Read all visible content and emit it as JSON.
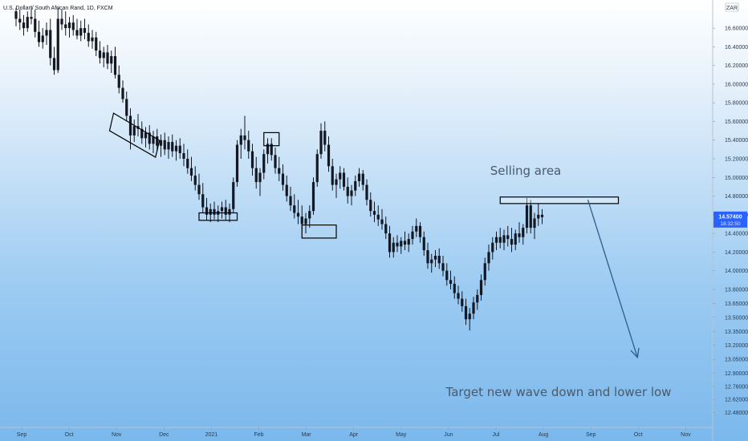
{
  "chart_data": {
    "type": "candlestick",
    "title": "U.S. Dollar / South African Rand, 1D, FXCM",
    "currency_badge": "ZAR",
    "ylim": [
      12.45,
      16.85
    ],
    "y_ticks": [
      "16.60000",
      "16.40000",
      "16.20000",
      "16.00000",
      "15.80000",
      "15.60000",
      "15.40000",
      "15.20000",
      "15.00000",
      "14.80000",
      "14.60000",
      "14.40000",
      "14.20000",
      "14.00000",
      "13.80000",
      "13.65000",
      "13.50000",
      "13.35000",
      "13.20000",
      "13.05000",
      "12.90000",
      "12.76000",
      "12.62000",
      "12.48000"
    ],
    "x_ticks": [
      "Sep",
      "Oct",
      "Nov",
      "Dec",
      "2021",
      "Feb",
      "Mar",
      "Apr",
      "May",
      "Jun",
      "Jul",
      "Aug",
      "Sep",
      "Oct",
      "Nov"
    ],
    "last_price": "14.57400",
    "countdown": "18:32:50",
    "series": [
      {
        "values": [
          [
            16.78,
            16.82,
            16.62,
            16.7
          ],
          [
            16.7,
            16.8,
            16.58,
            16.66
          ],
          [
            16.66,
            16.74,
            16.52,
            16.6
          ],
          [
            16.6,
            16.78,
            16.56,
            16.72
          ],
          [
            16.72,
            16.84,
            16.64,
            16.7
          ],
          [
            16.7,
            16.8,
            16.5,
            16.56
          ],
          [
            16.56,
            16.68,
            16.4,
            16.45
          ],
          [
            16.45,
            16.6,
            16.38,
            16.52
          ],
          [
            16.52,
            16.66,
            16.42,
            16.58
          ],
          [
            16.58,
            16.7,
            16.2,
            16.28
          ],
          [
            16.28,
            16.4,
            16.1,
            16.15
          ],
          [
            16.15,
            16.82,
            16.12,
            16.7
          ],
          [
            16.7,
            16.8,
            16.58,
            16.64
          ],
          [
            16.64,
            16.78,
            16.52,
            16.6
          ],
          [
            16.6,
            16.72,
            16.5,
            16.66
          ],
          [
            16.66,
            16.74,
            16.52,
            16.58
          ],
          [
            16.58,
            16.7,
            16.48,
            16.52
          ],
          [
            16.52,
            16.68,
            16.46,
            16.6
          ],
          [
            16.6,
            16.7,
            16.48,
            16.55
          ],
          [
            16.55,
            16.64,
            16.4,
            16.46
          ],
          [
            16.46,
            16.58,
            16.38,
            16.5
          ],
          [
            16.5,
            16.56,
            16.3,
            16.36
          ],
          [
            16.36,
            16.46,
            16.22,
            16.28
          ],
          [
            16.28,
            16.4,
            16.18,
            16.34
          ],
          [
            16.34,
            16.42,
            16.16,
            16.22
          ],
          [
            16.22,
            16.36,
            16.12,
            16.3
          ],
          [
            16.3,
            16.4,
            16.06,
            16.1
          ],
          [
            16.1,
            16.2,
            15.9,
            15.96
          ],
          [
            15.96,
            16.04,
            15.8,
            15.84
          ],
          [
            15.84,
            15.92,
            15.6,
            15.66
          ],
          [
            15.66,
            15.74,
            15.3,
            15.45
          ],
          [
            15.45,
            15.62,
            15.38,
            15.55
          ],
          [
            15.55,
            15.68,
            15.44,
            15.52
          ],
          [
            15.52,
            15.6,
            15.36,
            15.42
          ],
          [
            15.42,
            15.54,
            15.32,
            15.48
          ],
          [
            15.48,
            15.56,
            15.3,
            15.36
          ],
          [
            15.36,
            15.5,
            15.26,
            15.44
          ],
          [
            15.44,
            15.52,
            15.28,
            15.34
          ],
          [
            15.34,
            15.46,
            15.22,
            15.4
          ],
          [
            15.4,
            15.48,
            15.24,
            15.3
          ],
          [
            15.3,
            15.44,
            15.2,
            15.38
          ],
          [
            15.38,
            15.46,
            15.22,
            15.28
          ],
          [
            15.28,
            15.4,
            15.18,
            15.34
          ],
          [
            15.34,
            15.42,
            15.2,
            15.26
          ],
          [
            15.26,
            15.36,
            15.12,
            15.2
          ],
          [
            15.2,
            15.3,
            15.04,
            15.1
          ],
          [
            15.1,
            15.22,
            14.96,
            15.02
          ],
          [
            15.02,
            15.12,
            14.86,
            14.92
          ],
          [
            14.92,
            15.04,
            14.76,
            14.82
          ],
          [
            14.82,
            14.94,
            14.62,
            14.68
          ],
          [
            14.68,
            14.78,
            14.54,
            14.6
          ],
          [
            14.6,
            14.72,
            14.52,
            14.66
          ],
          [
            14.66,
            14.74,
            14.55,
            14.6
          ],
          [
            14.6,
            14.7,
            14.52,
            14.64
          ],
          [
            14.64,
            14.74,
            14.56,
            14.68
          ],
          [
            14.68,
            14.76,
            14.54,
            14.6
          ],
          [
            14.6,
            14.72,
            14.52,
            14.66
          ],
          [
            14.66,
            15.0,
            14.62,
            14.95
          ],
          [
            14.95,
            15.4,
            14.9,
            15.35
          ],
          [
            15.35,
            15.52,
            15.2,
            15.45
          ],
          [
            15.45,
            15.66,
            15.3,
            15.4
          ],
          [
            15.4,
            15.5,
            15.2,
            15.28
          ],
          [
            15.28,
            15.36,
            15.02,
            15.1
          ],
          [
            15.1,
            15.22,
            14.88,
            14.95
          ],
          [
            14.95,
            15.1,
            14.8,
            15.05
          ],
          [
            15.05,
            15.3,
            14.98,
            15.25
          ],
          [
            15.25,
            15.42,
            15.15,
            15.36
          ],
          [
            15.36,
            15.42,
            15.18,
            15.24
          ],
          [
            15.24,
            15.32,
            15.04,
            15.1
          ],
          [
            15.1,
            15.22,
            14.96,
            15.04
          ],
          [
            15.04,
            15.14,
            14.86,
            14.92
          ],
          [
            14.92,
            15.02,
            14.74,
            14.8
          ],
          [
            14.8,
            14.9,
            14.64,
            14.7
          ],
          [
            14.7,
            14.82,
            14.56,
            14.62
          ],
          [
            14.62,
            14.76,
            14.5,
            14.58
          ],
          [
            14.58,
            14.7,
            14.44,
            14.5
          ],
          [
            14.5,
            14.62,
            14.4,
            14.56
          ],
          [
            14.56,
            14.7,
            14.46,
            14.64
          ],
          [
            14.64,
            15.0,
            14.6,
            14.95
          ],
          [
            14.95,
            15.3,
            14.9,
            15.25
          ],
          [
            15.25,
            15.58,
            15.2,
            15.5
          ],
          [
            15.5,
            15.6,
            15.28,
            15.35
          ],
          [
            15.35,
            15.44,
            15.06,
            15.12
          ],
          [
            15.12,
            15.2,
            14.86,
            14.92
          ],
          [
            14.92,
            15.04,
            14.78,
            14.98
          ],
          [
            14.98,
            15.12,
            14.88,
            15.05
          ],
          [
            15.05,
            15.1,
            14.86,
            14.9
          ],
          [
            14.9,
            15.0,
            14.72,
            14.8
          ],
          [
            14.8,
            14.92,
            14.7,
            14.86
          ],
          [
            14.86,
            15.02,
            14.8,
            14.96
          ],
          [
            14.96,
            15.1,
            14.9,
            15.04
          ],
          [
            15.04,
            15.08,
            14.86,
            14.92
          ],
          [
            14.92,
            14.98,
            14.7,
            14.76
          ],
          [
            14.76,
            14.84,
            14.58,
            14.64
          ],
          [
            14.64,
            14.74,
            14.52,
            14.6
          ],
          [
            14.6,
            14.7,
            14.48,
            14.55
          ],
          [
            14.55,
            14.66,
            14.44,
            14.5
          ],
          [
            14.5,
            14.58,
            14.34,
            14.4
          ],
          [
            14.4,
            14.48,
            14.14,
            14.2
          ],
          [
            14.2,
            14.36,
            14.14,
            14.3
          ],
          [
            14.3,
            14.38,
            14.2,
            14.26
          ],
          [
            14.26,
            14.36,
            14.18,
            14.32
          ],
          [
            14.32,
            14.42,
            14.22,
            14.28
          ],
          [
            14.28,
            14.4,
            14.2,
            14.34
          ],
          [
            14.34,
            14.48,
            14.28,
            14.42
          ],
          [
            14.42,
            14.56,
            14.36,
            14.48
          ],
          [
            14.48,
            14.52,
            14.3,
            14.36
          ],
          [
            14.36,
            14.42,
            14.16,
            14.22
          ],
          [
            14.22,
            14.3,
            14.02,
            14.08
          ],
          [
            14.08,
            14.18,
            13.98,
            14.12
          ],
          [
            14.12,
            14.22,
            14.04,
            14.16
          ],
          [
            14.16,
            14.24,
            14.02,
            14.08
          ],
          [
            14.08,
            14.16,
            13.94,
            14.0
          ],
          [
            14.0,
            14.08,
            13.84,
            13.9
          ],
          [
            13.9,
            14.0,
            13.8,
            13.86
          ],
          [
            13.86,
            13.94,
            13.7,
            13.76
          ],
          [
            13.76,
            13.84,
            13.64,
            13.7
          ],
          [
            13.7,
            13.78,
            13.56,
            13.62
          ],
          [
            13.62,
            13.7,
            13.42,
            13.48
          ],
          [
            13.48,
            13.6,
            13.36,
            13.54
          ],
          [
            13.54,
            13.72,
            13.48,
            13.66
          ],
          [
            13.66,
            13.8,
            13.58,
            13.74
          ],
          [
            13.74,
            13.96,
            13.68,
            13.9
          ],
          [
            13.9,
            14.14,
            13.84,
            14.08
          ],
          [
            14.08,
            14.28,
            14.0,
            14.2
          ],
          [
            14.2,
            14.36,
            14.12,
            14.3
          ],
          [
            14.3,
            14.42,
            14.22,
            14.36
          ],
          [
            14.36,
            14.46,
            14.24,
            14.3
          ],
          [
            14.3,
            14.44,
            14.22,
            14.38
          ],
          [
            14.38,
            14.48,
            14.26,
            14.34
          ],
          [
            14.34,
            14.46,
            14.2,
            14.28
          ],
          [
            14.28,
            14.44,
            14.22,
            14.4
          ],
          [
            14.4,
            14.52,
            14.3,
            14.36
          ],
          [
            14.36,
            14.5,
            14.28,
            14.46
          ],
          [
            14.46,
            14.78,
            14.4,
            14.7
          ],
          [
            14.7,
            14.76,
            14.4,
            14.46
          ],
          [
            14.46,
            14.62,
            14.34,
            14.56
          ],
          [
            14.56,
            14.72,
            14.48,
            14.6
          ],
          [
            14.6,
            14.66,
            14.5,
            14.574
          ]
        ]
      }
    ],
    "annotations": [
      {
        "text": "Selling area"
      },
      {
        "text": "Target new wave down and lower low"
      }
    ],
    "price_boxes": [
      {
        "x0": 26,
        "x1": 37,
        "y_top": 15.62,
        "y_bottom": 15.38,
        "rotated": true
      },
      {
        "x0": 48,
        "x1": 58,
        "y_top": 14.62,
        "y_bottom": 14.54
      },
      {
        "x0": 65,
        "x1": 69,
        "y_top": 15.48,
        "y_bottom": 15.34
      },
      {
        "x0": 75,
        "x1": 84,
        "y_top": 14.49,
        "y_bottom": 14.35
      },
      {
        "x0": 127,
        "x1": 158,
        "y_top": 14.79,
        "y_bottom": 14.72
      }
    ],
    "arrow": {
      "from": [
        150,
        14.76
      ],
      "to": [
        163,
        13.07
      ]
    },
    "colors": {
      "up": "#131722",
      "down": "#131722",
      "price_badge": "#2962ff",
      "annotation": "#4a5a6a"
    },
    "grid": false,
    "legend": "none"
  }
}
